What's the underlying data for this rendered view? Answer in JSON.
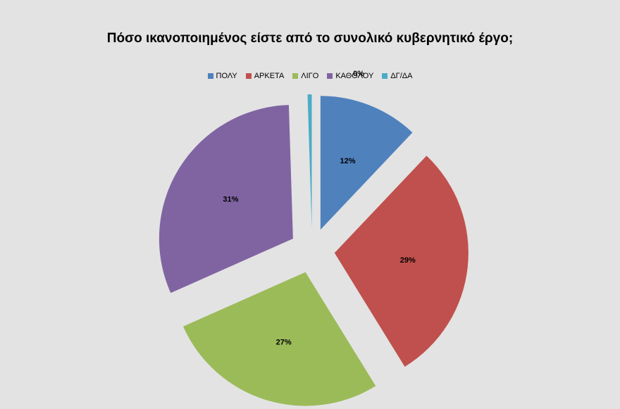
{
  "chart_data": {
    "type": "pie",
    "title": "Πόσο ικανοποιημένος είστε από το συνολικό κυβερνητικό έργο;",
    "categories": [
      "ΠΟΛΥ",
      "ΑΡΚΕΤΑ",
      "ΛΙΓΟ",
      "ΚΑΘΟΛΟΥ",
      "ΔΓ/ΔΑ"
    ],
    "values": [
      12,
      29,
      27,
      31,
      0.5
    ],
    "labels": [
      "12%",
      "29%",
      "27%",
      "31%",
      "0%"
    ],
    "colors": [
      "#4f81bd",
      "#c0504d",
      "#9bbb59",
      "#8064a2",
      "#4bacc6"
    ],
    "legend_position": "top",
    "exploded": true
  }
}
